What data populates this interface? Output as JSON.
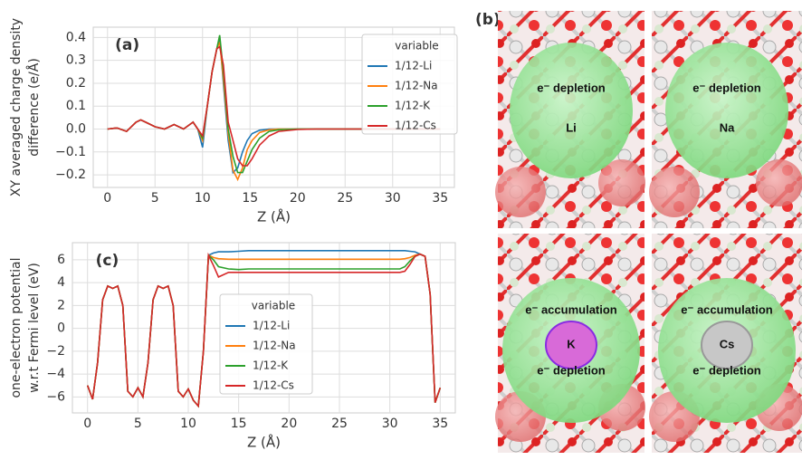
{
  "chart_data": [
    {
      "type": "line",
      "annotation": "(a)",
      "xlabel": "Z (Å)",
      "ylabel": [
        "XY averaged charge density",
        "difference (e/Å)"
      ],
      "legend_title": "variable",
      "legend": "upper right",
      "grid": true,
      "xlim": [
        -1.5,
        36.5
      ],
      "ylim": [
        -0.255,
        0.445
      ],
      "xticks": [
        0,
        5,
        10,
        15,
        20,
        25,
        30,
        35
      ],
      "yticks": [
        {
          "value": -0.2,
          "label": "−0.2"
        },
        {
          "value": -0.1,
          "label": "−0.1"
        },
        {
          "value": 0,
          "label": "0.0"
        },
        0.1,
        0.2,
        0.3,
        0.4
      ],
      "x": [
        0,
        1,
        2,
        3,
        3.5,
        4,
        5,
        6,
        7,
        8,
        9,
        9.5,
        10,
        10.5,
        11,
        11.5,
        11.8,
        12.2,
        12.7,
        13.2,
        13.7,
        14.2,
        14.7,
        15.2,
        16,
        17,
        18,
        20,
        22,
        25,
        30,
        35
      ],
      "series": [
        {
          "name": "1/12-Li",
          "color": "#1f77b4",
          "values": [
            0,
            0.005,
            -0.01,
            0.03,
            0.04,
            0.03,
            0.01,
            0,
            0.02,
            0,
            0.03,
            0,
            -0.08,
            0.1,
            0.25,
            0.35,
            0.4,
            0.2,
            -0.05,
            -0.19,
            -0.17,
            -0.1,
            -0.05,
            -0.02,
            -0.005,
            0,
            0,
            0,
            0,
            0,
            0,
            0
          ]
        },
        {
          "name": "1/12-Na",
          "color": "#ff7f0e",
          "values": [
            0,
            0.005,
            -0.01,
            0.03,
            0.04,
            0.03,
            0.01,
            0,
            0.02,
            0,
            0.03,
            0,
            -0.05,
            0.1,
            0.25,
            0.35,
            0.38,
            0.22,
            -0.02,
            -0.18,
            -0.22,
            -0.17,
            -0.09,
            -0.05,
            -0.015,
            -0.003,
            0,
            0,
            0,
            0,
            0,
            0
          ]
        },
        {
          "name": "1/12-K",
          "color": "#2ca02c",
          "values": [
            0,
            0.005,
            -0.01,
            0.03,
            0.04,
            0.03,
            0.01,
            0,
            0.02,
            0,
            0.03,
            0,
            -0.04,
            0.1,
            0.25,
            0.35,
            0.41,
            0.25,
            0,
            -0.12,
            -0.19,
            -0.19,
            -0.14,
            -0.09,
            -0.04,
            -0.01,
            -0.003,
            0,
            0,
            0,
            0,
            0
          ]
        },
        {
          "name": "1/12-Cs",
          "color": "#d62728",
          "values": [
            0,
            0.005,
            -0.01,
            0.03,
            0.04,
            0.03,
            0.01,
            0,
            0.02,
            0,
            0.03,
            0,
            -0.03,
            0.1,
            0.25,
            0.35,
            0.36,
            0.28,
            0.03,
            -0.05,
            -0.13,
            -0.16,
            -0.16,
            -0.13,
            -0.07,
            -0.03,
            -0.01,
            -0.002,
            0,
            0,
            0,
            0
          ]
        }
      ]
    },
    {
      "type": "line",
      "annotation": "(c)",
      "xlabel": "Z (Å)",
      "ylabel": [
        "one-electron potential",
        "w.r.t Fermi level (eV)"
      ],
      "legend_title": "variable",
      "legend": "center",
      "grid": true,
      "xlim": [
        -1.5,
        36.5
      ],
      "ylim": [
        -7.4,
        7.5
      ],
      "xticks": [
        0,
        5,
        10,
        15,
        20,
        25,
        30,
        35
      ],
      "yticks": [
        {
          "value": -6,
          "label": "−6"
        },
        {
          "value": -4,
          "label": "−4"
        },
        {
          "value": -2,
          "label": "−2"
        },
        0,
        2,
        4,
        6
      ],
      "x": [
        0,
        0.5,
        1,
        1.5,
        2,
        2.5,
        3,
        3.5,
        4,
        4.5,
        5,
        5.5,
        6,
        6.5,
        7,
        7.5,
        8,
        8.5,
        9,
        9.5,
        10,
        10.5,
        11,
        11.5,
        12,
        12.5,
        13,
        14,
        15,
        16,
        20,
        25,
        28,
        30,
        31,
        31.5,
        32,
        32.5,
        33,
        33.5,
        34,
        34.5,
        35
      ],
      "series": [
        {
          "name": "1/12-Li",
          "color": "#1f77b4",
          "values": [
            -5,
            -6.2,
            -3,
            2.5,
            3.7,
            3.5,
            3.7,
            2,
            -5.5,
            -6,
            -5.2,
            -6,
            -3,
            2.5,
            3.7,
            3.5,
            3.7,
            2,
            -5.5,
            -6,
            -5.3,
            -6.3,
            -6.8,
            -2,
            6.4,
            6.6,
            6.7,
            6.7,
            6.75,
            6.8,
            6.8,
            6.8,
            6.8,
            6.8,
            6.8,
            6.8,
            6.75,
            6.7,
            6.5,
            6.3,
            3,
            -6.5,
            -5.2
          ]
        },
        {
          "name": "1/12-Na",
          "color": "#ff7f0e",
          "values": [
            -5,
            -6.2,
            -3,
            2.5,
            3.7,
            3.5,
            3.7,
            2,
            -5.5,
            -6,
            -5.2,
            -6,
            -3,
            2.5,
            3.7,
            3.5,
            3.7,
            2,
            -5.5,
            -6,
            -5.3,
            -6.3,
            -6.8,
            -2,
            6.4,
            6.2,
            6.1,
            6.05,
            6.05,
            6.05,
            6.05,
            6.05,
            6.05,
            6.05,
            6.05,
            6.1,
            6.2,
            6.4,
            6.5,
            6.3,
            3,
            -6.5,
            -5.2
          ]
        },
        {
          "name": "1/12-K",
          "color": "#2ca02c",
          "values": [
            -5,
            -6.2,
            -3,
            2.5,
            3.7,
            3.5,
            3.7,
            2,
            -5.5,
            -6,
            -5.2,
            -6,
            -3,
            2.5,
            3.7,
            3.5,
            3.7,
            2,
            -5.5,
            -6,
            -5.3,
            -6.3,
            -6.8,
            -2,
            6.4,
            6.0,
            5.4,
            5.2,
            5.15,
            5.2,
            5.2,
            5.2,
            5.2,
            5.2,
            5.2,
            5.4,
            5.9,
            6.3,
            6.5,
            6.3,
            3,
            -6.5,
            -5.2
          ]
        },
        {
          "name": "1/12-Cs",
          "color": "#d62728",
          "values": [
            -5,
            -6.2,
            -3,
            2.5,
            3.7,
            3.5,
            3.7,
            2,
            -5.5,
            -6,
            -5.2,
            -6,
            -3,
            2.5,
            3.7,
            3.5,
            3.7,
            2,
            -5.5,
            -6,
            -5.3,
            -6.3,
            -6.8,
            -2,
            6.4,
            5.5,
            4.5,
            4.9,
            4.9,
            4.9,
            4.9,
            4.9,
            4.9,
            4.9,
            4.9,
            5.0,
            5.6,
            6.3,
            6.5,
            6.3,
            3,
            -6.5,
            -5.2
          ]
        }
      ]
    }
  ],
  "panel_b": {
    "label": "(b)",
    "tiles": [
      {
        "labels": [
          "e⁻ depletion",
          "Li"
        ]
      },
      {
        "labels": [
          "e⁻ depletion",
          "Na"
        ]
      },
      {
        "labels": [
          "e⁻ accumulation",
          "K",
          "e⁻ depletion"
        ]
      },
      {
        "labels": [
          "e⁻ accumulation",
          "Cs",
          "e⁻ depletion"
        ]
      }
    ]
  }
}
